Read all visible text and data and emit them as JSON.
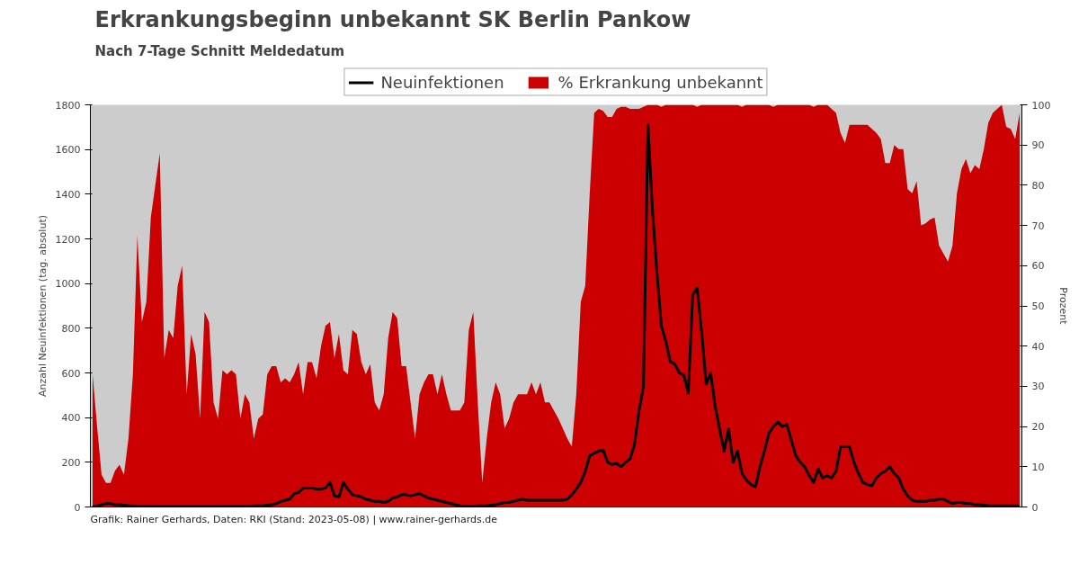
{
  "chart_data": {
    "type": "line",
    "title": "Erkrankungsbeginn unbekannt SK Berlin Pankow",
    "subtitle": "Nach 7-Tage Schnitt Meldedatum",
    "ylabel": "Anzahl Neuinfektionen (tag. absolut)",
    "y2label": "Prozent",
    "annotations": [
      "Grafik: Rainer Gerhards, Daten: RKI (Stand: 2023-05-08) | www.rainer-gerhards.de"
    ],
    "categories": [
      null,
      null,
      null,
      null,
      null,
      null,
      null,
      null,
      null,
      null,
      null,
      null,
      null,
      null,
      null,
      null,
      null,
      null,
      null,
      null,
      null,
      null,
      null,
      null,
      null,
      null,
      null,
      null,
      null,
      null,
      null,
      null,
      null,
      null,
      null,
      null,
      null,
      null,
      null,
      null,
      null,
      null,
      null,
      null,
      null,
      null,
      null,
      null,
      null,
      null,
      null,
      null,
      null,
      null,
      null,
      null,
      null,
      null,
      null,
      null,
      null,
      null,
      null,
      null,
      null,
      null,
      null,
      null,
      null,
      null,
      null,
      null,
      null,
      null,
      null,
      null,
      null,
      null,
      null,
      null,
      null,
      null,
      null,
      null,
      null,
      null,
      null,
      null,
      null,
      null,
      null,
      null,
      null,
      null,
      null,
      null,
      null,
      null,
      null,
      null,
      null,
      null,
      null,
      null,
      null,
      null,
      null,
      null,
      null,
      null,
      null,
      null,
      null,
      null,
      null,
      null,
      null,
      null,
      null,
      null,
      null,
      null,
      null,
      null,
      null,
      null,
      null,
      null,
      null,
      null,
      null,
      null,
      null,
      null,
      null,
      null,
      null,
      null,
      null,
      null,
      null,
      null,
      null,
      null,
      null,
      null,
      null,
      null,
      null,
      null,
      null,
      null,
      null,
      null,
      null,
      null,
      null,
      null,
      null,
      null,
      null,
      null,
      null,
      null,
      null,
      null,
      null,
      null,
      null,
      null,
      null,
      null,
      null,
      null,
      null,
      null,
      null,
      null,
      null,
      null,
      null,
      null,
      null,
      null,
      null,
      null,
      null,
      null,
      null,
      null,
      null,
      null,
      null,
      null,
      null,
      null,
      null,
      null,
      null,
      null,
      null,
      null,
      null,
      null,
      null,
      null,
      null,
      null
    ],
    "series": [
      {
        "name": "Neuinfektionen",
        "axis": "y",
        "color": "#000000",
        "values": [
          0,
          5,
          10,
          15,
          15,
          10,
          10,
          8,
          5,
          5,
          3,
          3,
          3,
          2,
          2,
          2,
          2,
          2,
          2,
          2,
          2,
          2,
          2,
          2,
          2,
          2,
          2,
          2,
          2,
          2,
          3,
          3,
          3,
          3,
          3,
          3,
          5,
          5,
          5,
          8,
          10,
          15,
          25,
          30,
          35,
          60,
          65,
          85,
          85,
          85,
          80,
          80,
          85,
          110,
          50,
          45,
          110,
          80,
          55,
          50,
          45,
          35,
          30,
          25,
          25,
          20,
          25,
          40,
          45,
          55,
          55,
          50,
          55,
          60,
          50,
          40,
          35,
          30,
          25,
          20,
          15,
          10,
          5,
          3,
          3,
          3,
          5,
          5,
          5,
          8,
          10,
          15,
          20,
          20,
          25,
          30,
          35,
          30,
          30,
          30,
          30,
          30,
          30,
          30,
          30,
          30,
          35,
          55,
          80,
          110,
          160,
          230,
          240,
          250,
          255,
          200,
          190,
          195,
          180,
          200,
          215,
          280,
          430,
          540,
          1710,
          1330,
          1050,
          810,
          740,
          650,
          640,
          600,
          590,
          510,
          950,
          980,
          780,
          550,
          600,
          450,
          350,
          250,
          350,
          200,
          250,
          150,
          120,
          100,
          90,
          180,
          250,
          330,
          360,
          380,
          360,
          370,
          300,
          230,
          200,
          180,
          140,
          110,
          170,
          130,
          140,
          130,
          160,
          270,
          270,
          270,
          200,
          150,
          110,
          100,
          95,
          130,
          150,
          160,
          180,
          150,
          130,
          80,
          50,
          30,
          25,
          25,
          25,
          30,
          30,
          35,
          35,
          25,
          15,
          20,
          20,
          15,
          15,
          10,
          10,
          8,
          5,
          5,
          5,
          5,
          5,
          5,
          5,
          3
        ]
      },
      {
        "name": "% Erkrankung unbekannt",
        "type": "area",
        "axis": "y2",
        "color": "#cc0000",
        "values": [
          33,
          20,
          8,
          6,
          6,
          9,
          10.5,
          8,
          17,
          33,
          67.5,
          46,
          51,
          72,
          80,
          88,
          37,
          44,
          42,
          55,
          60,
          28,
          43,
          38,
          22,
          48.5,
          46,
          26,
          22,
          34,
          33,
          34,
          33,
          22,
          28,
          26,
          17,
          22,
          23,
          33,
          35,
          35,
          31,
          32,
          31,
          33,
          36,
          28,
          36,
          36,
          32,
          40,
          45,
          46,
          37,
          43,
          34,
          33,
          44,
          43,
          36,
          33,
          35.5,
          26,
          24,
          28,
          42,
          48.5,
          47,
          35,
          35,
          26,
          17,
          28,
          31,
          33,
          33,
          28,
          33,
          28,
          24,
          24,
          24,
          26,
          44,
          48.5,
          26,
          6,
          17,
          26,
          31,
          28,
          19.5,
          22,
          26,
          28,
          28,
          28,
          31,
          28,
          31,
          26,
          26,
          24,
          22,
          19.5,
          17,
          15,
          28,
          51,
          55,
          78,
          98,
          99,
          98.5,
          97,
          97,
          99,
          99.5,
          99.5,
          99,
          99,
          99,
          99.5,
          100,
          100,
          100,
          99.5,
          100,
          100,
          100,
          100,
          100,
          100,
          100,
          99.5,
          100,
          100,
          100,
          100,
          100,
          100,
          100,
          100,
          100,
          99.5,
          100,
          100,
          100,
          100,
          100,
          100,
          99.5,
          100,
          100,
          100,
          100,
          100,
          100,
          100,
          100,
          99.5,
          100,
          100,
          100,
          99,
          98,
          93,
          90.5,
          95,
          95,
          95,
          95,
          95,
          94,
          93,
          91.5,
          85.5,
          85.5,
          90,
          89,
          89,
          79,
          78,
          81,
          70,
          70.5,
          71.5,
          72,
          65,
          63,
          61,
          65,
          78,
          84,
          86.5,
          83,
          85,
          84,
          89,
          95.5,
          98,
          99,
          100,
          94.5,
          94,
          91.5,
          98
        ]
      }
    ],
    "ylim": [
      0,
      1800
    ],
    "yticks": [
      0,
      200,
      400,
      600,
      800,
      1000,
      1200,
      1400,
      1600,
      1800
    ],
    "y2lim": [
      0,
      100
    ],
    "y2ticks": [
      0,
      10,
      20,
      30,
      40,
      50,
      60,
      70,
      80,
      90,
      100
    ],
    "legend": "top"
  }
}
